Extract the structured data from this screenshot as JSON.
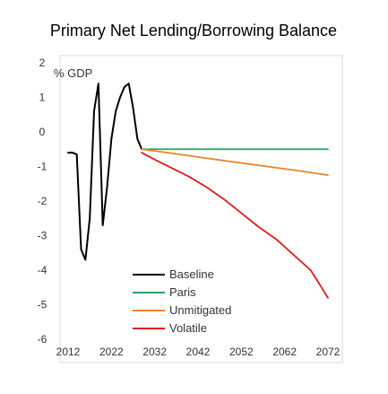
{
  "chart_data": {
    "type": "line",
    "title": "Primary Net Lending/Borrowing Balance",
    "xlabel": "",
    "ylabel": "% GDP",
    "x_ticks": [
      "2012",
      "2022",
      "2032",
      "2042",
      "2052",
      "2062",
      "2072"
    ],
    "y_ticks": [
      "2",
      "1",
      "0",
      "-1",
      "-2",
      "-3",
      "-4",
      "-5",
      "-6"
    ],
    "xlim": [
      2012,
      2072
    ],
    "ylim": [
      -6,
      2
    ],
    "grid": false,
    "legend_position": "bottom-center",
    "series": [
      {
        "name": "Baseline",
        "color": "#000000",
        "points": [
          [
            2012,
            -0.6
          ],
          [
            2013,
            -0.6
          ],
          [
            2014,
            -0.65
          ],
          [
            2015,
            -3.4
          ],
          [
            2016,
            -3.7
          ],
          [
            2017,
            -2.5
          ],
          [
            2018,
            0.6
          ],
          [
            2019,
            1.4
          ],
          [
            2020,
            -2.7
          ],
          [
            2021,
            -1.6
          ],
          [
            2022,
            -0.2
          ],
          [
            2023,
            0.6
          ],
          [
            2024,
            1.0
          ],
          [
            2025,
            1.3
          ],
          [
            2026,
            1.4
          ],
          [
            2027,
            0.7
          ],
          [
            2028,
            -0.2
          ],
          [
            2029,
            -0.5
          ]
        ]
      },
      {
        "name": "Paris",
        "color": "#2ca25f",
        "points": [
          [
            2029,
            -0.5
          ],
          [
            2035,
            -0.5
          ],
          [
            2045,
            -0.5
          ],
          [
            2055,
            -0.5
          ],
          [
            2065,
            -0.5
          ],
          [
            2072,
            -0.5
          ]
        ]
      },
      {
        "name": "Unmitigated",
        "color": "#e6862b",
        "points": [
          [
            2029,
            -0.5
          ],
          [
            2035,
            -0.6
          ],
          [
            2045,
            -0.78
          ],
          [
            2055,
            -0.95
          ],
          [
            2065,
            -1.12
          ],
          [
            2072,
            -1.25
          ]
        ]
      },
      {
        "name": "Volatile",
        "color": "#e31a1c",
        "points": [
          [
            2029,
            -0.6
          ],
          [
            2032,
            -0.8
          ],
          [
            2036,
            -1.05
          ],
          [
            2040,
            -1.3
          ],
          [
            2044,
            -1.6
          ],
          [
            2048,
            -1.95
          ],
          [
            2052,
            -2.35
          ],
          [
            2056,
            -2.75
          ],
          [
            2060,
            -3.1
          ],
          [
            2064,
            -3.55
          ],
          [
            2068,
            -4.0
          ],
          [
            2072,
            -4.8
          ]
        ]
      }
    ]
  }
}
